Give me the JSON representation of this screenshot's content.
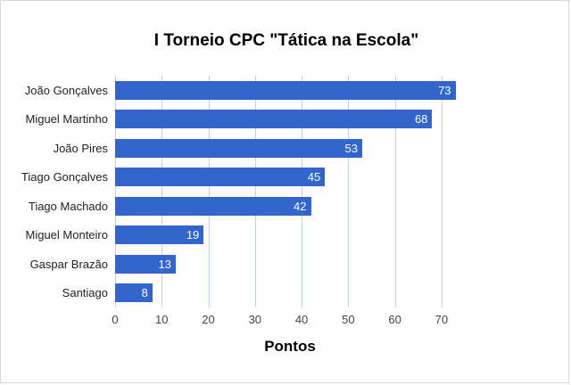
{
  "chart_data": {
    "type": "bar",
    "orientation": "horizontal",
    "title": "I Torneio CPC \"Tática na Escola\"",
    "categories": [
      "João Gonçalves",
      "Miguel Martinho",
      "João Pires",
      "Tiago Gonçalves",
      "Tiago Machado",
      "Miguel Monteiro",
      "Gaspar Brazão",
      "Santiago"
    ],
    "values": [
      73,
      68,
      53,
      45,
      42,
      19,
      13,
      8
    ],
    "xlabel": "Pontos",
    "ylabel": "",
    "xlim": [
      0,
      75
    ],
    "xticks": [
      0,
      10,
      20,
      30,
      40,
      50,
      60,
      70
    ],
    "grid": true,
    "legend": "none",
    "bar_color": "#3366cc",
    "value_label_color": "#ffffff",
    "gridline_color": "#c3d0e8"
  }
}
